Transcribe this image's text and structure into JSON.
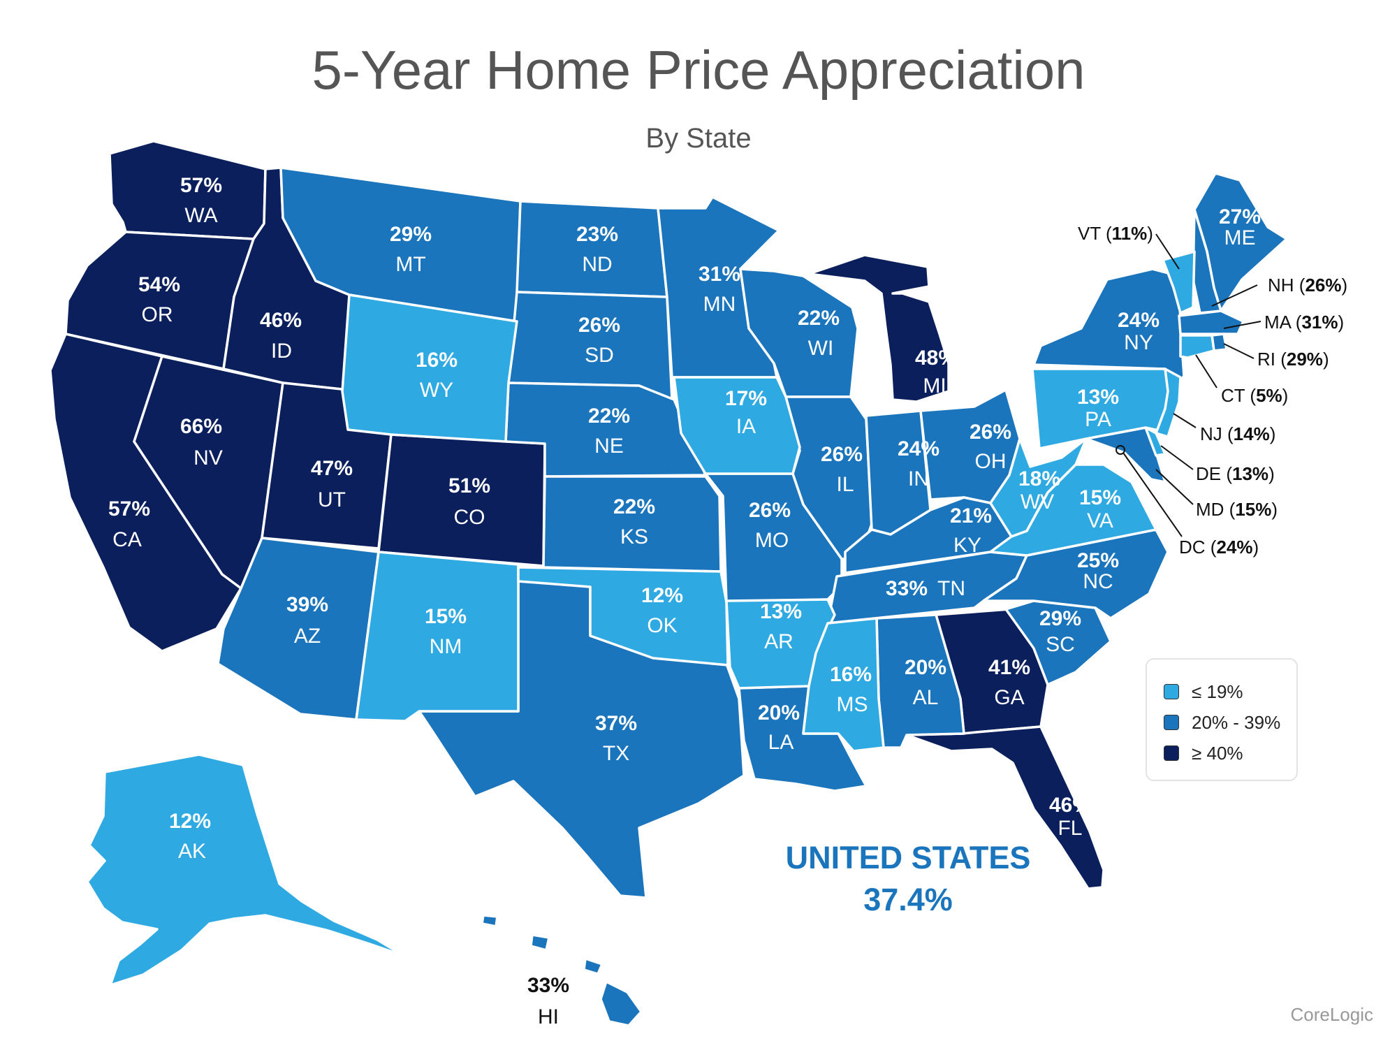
{
  "title": "5-Year Home Price Appreciation",
  "subtitle": "By State",
  "colors": {
    "low": "#2fa9e2",
    "mid": "#1b75bc",
    "high": "#0b1f5c"
  },
  "legend": [
    {
      "label": "≤ 19%",
      "color": "#2fa9e2"
    },
    {
      "label": "20% - 39%",
      "color": "#1b75bc"
    },
    {
      "label": "≥ 40%",
      "color": "#0b1f5c"
    }
  ],
  "states": {
    "WA": {
      "pct": "57%",
      "abbr": "WA"
    },
    "OR": {
      "pct": "54%",
      "abbr": "OR"
    },
    "CA": {
      "pct": "57%",
      "abbr": "CA"
    },
    "NV": {
      "pct": "66%",
      "abbr": "NV"
    },
    "ID": {
      "pct": "46%",
      "abbr": "ID"
    },
    "MT": {
      "pct": "29%",
      "abbr": "MT"
    },
    "WY": {
      "pct": "16%",
      "abbr": "WY"
    },
    "UT": {
      "pct": "47%",
      "abbr": "UT"
    },
    "CO": {
      "pct": "51%",
      "abbr": "CO"
    },
    "AZ": {
      "pct": "39%",
      "abbr": "AZ"
    },
    "NM": {
      "pct": "15%",
      "abbr": "NM"
    },
    "ND": {
      "pct": "23%",
      "abbr": "ND"
    },
    "SD": {
      "pct": "26%",
      "abbr": "SD"
    },
    "NE": {
      "pct": "22%",
      "abbr": "NE"
    },
    "KS": {
      "pct": "22%",
      "abbr": "KS"
    },
    "OK": {
      "pct": "12%",
      "abbr": "OK"
    },
    "TX": {
      "pct": "37%",
      "abbr": "TX"
    },
    "MN": {
      "pct": "31%",
      "abbr": "MN"
    },
    "IA": {
      "pct": "17%",
      "abbr": "IA"
    },
    "MO": {
      "pct": "26%",
      "abbr": "MO"
    },
    "AR": {
      "pct": "13%",
      "abbr": "AR"
    },
    "LA": {
      "pct": "20%",
      "abbr": "LA"
    },
    "WI": {
      "pct": "22%",
      "abbr": "WI"
    },
    "IL": {
      "pct": "26%",
      "abbr": "IL"
    },
    "MI": {
      "pct": "48%",
      "abbr": "MI"
    },
    "IN": {
      "pct": "24%",
      "abbr": "IN"
    },
    "OH": {
      "pct": "26%",
      "abbr": "OH"
    },
    "KY": {
      "pct": "21%",
      "abbr": "KY"
    },
    "TN": {
      "pct": "33%",
      "abbr": "TN"
    },
    "MS": {
      "pct": "16%",
      "abbr": "MS"
    },
    "AL": {
      "pct": "20%",
      "abbr": "AL"
    },
    "GA": {
      "pct": "41%",
      "abbr": "GA"
    },
    "FL": {
      "pct": "46%",
      "abbr": "FL"
    },
    "SC": {
      "pct": "29%",
      "abbr": "SC"
    },
    "NC": {
      "pct": "25%",
      "abbr": "NC"
    },
    "VA": {
      "pct": "15%",
      "abbr": "VA"
    },
    "WV": {
      "pct": "18%",
      "abbr": "WV"
    },
    "PA": {
      "pct": "13%",
      "abbr": "PA"
    },
    "NY": {
      "pct": "24%",
      "abbr": "NY"
    },
    "ME": {
      "pct": "27%",
      "abbr": "ME"
    },
    "AK": {
      "pct": "12%",
      "abbr": "AK"
    },
    "HI": {
      "pct": "33%",
      "abbr": "HI"
    }
  },
  "callouts": {
    "VT": {
      "abbr": "VT",
      "value": "11%"
    },
    "NH": {
      "abbr": "NH",
      "value": "26%"
    },
    "MA": {
      "abbr": "MA",
      "value": "31%"
    },
    "RI": {
      "abbr": "RI",
      "value": "29%"
    },
    "CT": {
      "abbr": "CT",
      "value": "5%"
    },
    "NJ": {
      "abbr": "NJ",
      "value": "14%"
    },
    "DE": {
      "abbr": "DE",
      "value": "13%"
    },
    "MD": {
      "abbr": "MD",
      "value": "15%"
    },
    "DC": {
      "abbr": "DC",
      "value": "24%"
    }
  },
  "national": {
    "name": "UNITED STATES",
    "value": "37.4%"
  },
  "source": "CoreLogic"
}
